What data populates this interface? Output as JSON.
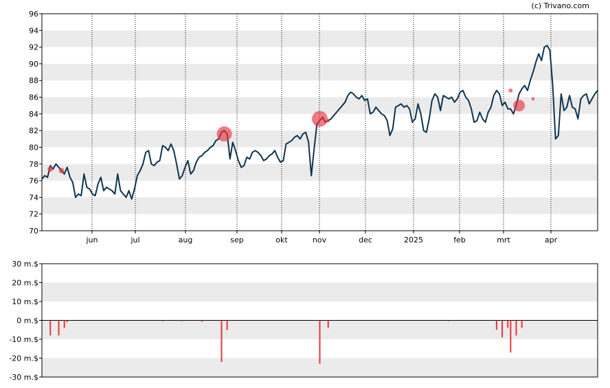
{
  "credit": "(c) Trivano.com",
  "chart_data": [
    {
      "type": "line",
      "title": "",
      "xlabel": "",
      "ylabel": "",
      "ylim": [
        70,
        96
      ],
      "grid": true,
      "x_tick_labels": [
        "jun",
        "jul",
        "aug",
        "sep",
        "okt",
        "nov",
        "dec",
        "2025",
        "feb",
        "mrt",
        "apr"
      ],
      "y_tick_labels": [
        "70",
        "72",
        "74",
        "76",
        "78",
        "80",
        "82",
        "84",
        "86",
        "88",
        "90",
        "92",
        "94",
        "96"
      ],
      "colors": {
        "line": "#0d3350",
        "marker": "#e8343f",
        "band": "#ebebeb",
        "grid": "#000000"
      },
      "series": [
        {
          "values": [
            76.2,
            76.6,
            76.4,
            77.8,
            77.4,
            78.0,
            77.6,
            77.2,
            76.8,
            77.6,
            76.4,
            75.8,
            74.0,
            74.4,
            74.2,
            76.8,
            75.2,
            75.0,
            74.4,
            74.2,
            75.6,
            76.4,
            74.8,
            75.2,
            75.0,
            74.8,
            74.4,
            76.8,
            74.8,
            74.4,
            74.0,
            74.8,
            73.8,
            75.0,
            76.6,
            77.2,
            78.0,
            79.4,
            79.6,
            78.0,
            77.8,
            78.2,
            78.4,
            80.2,
            80.0,
            79.6,
            80.4,
            79.6,
            78.0,
            76.2,
            76.6,
            77.6,
            78.4,
            76.8,
            77.2,
            78.2,
            78.8,
            79.0,
            79.4,
            79.6,
            80.0,
            80.2,
            80.8,
            81.0,
            81.8,
            82.0,
            81.6,
            78.6,
            80.6,
            79.6,
            78.4,
            77.6,
            77.8,
            78.8,
            78.6,
            79.4,
            79.6,
            79.4,
            79.0,
            78.4,
            78.6,
            79.0,
            79.2,
            79.6,
            78.8,
            78.2,
            78.4,
            80.4,
            80.6,
            80.8,
            81.2,
            81.4,
            81.0,
            81.6,
            81.8,
            80.6,
            76.6,
            79.8,
            82.8,
            83.2,
            83.6,
            83.0,
            83.2,
            83.4,
            83.8,
            84.2,
            84.6,
            85.0,
            85.4,
            86.2,
            86.6,
            86.4,
            86.0,
            85.8,
            86.2,
            85.6,
            85.8,
            84.0,
            84.2,
            84.8,
            84.4,
            84.0,
            83.8,
            83.2,
            81.4,
            82.2,
            84.8,
            85.0,
            85.2,
            84.8,
            85.0,
            84.6,
            83.0,
            83.4,
            85.2,
            84.0,
            82.0,
            81.8,
            83.4,
            85.6,
            86.4,
            86.0,
            84.4,
            86.2,
            86.0,
            85.8,
            86.0,
            85.4,
            85.8,
            86.6,
            86.8,
            86.0,
            85.6,
            84.6,
            83.0,
            83.2,
            84.2,
            83.4,
            83.0,
            84.2,
            84.8,
            86.2,
            86.8,
            86.4,
            85.0,
            85.4,
            84.6,
            84.6,
            84.0,
            85.0,
            86.4,
            87.0,
            87.4,
            86.8,
            88.0,
            89.0,
            90.2,
            91.2,
            90.4,
            92.0,
            92.2,
            91.6,
            87.4,
            81.0,
            81.4,
            86.4,
            84.4,
            84.8,
            86.2,
            84.8,
            84.6,
            83.4,
            85.8,
            86.2,
            86.4,
            85.2,
            85.8,
            86.4,
            86.8
          ],
          "events": [
            {
              "index": 3,
              "value": 77.4,
              "magnitude": 8
            },
            {
              "index": 7,
              "value": 77.2,
              "magnitude": 8
            },
            {
              "index": 65,
              "value": 81.6,
              "magnitude": 22
            },
            {
              "index": 99,
              "value": 83.4,
              "magnitude": 23
            },
            {
              "index": 102,
              "value": 83.2,
              "magnitude": 4
            },
            {
              "index": 167,
              "value": 86.8,
              "magnitude": 6
            },
            {
              "index": 170,
              "value": 85.0,
              "magnitude": 17
            },
            {
              "index": 175,
              "value": 85.8,
              "magnitude": 4
            }
          ]
        }
      ]
    },
    {
      "type": "bar",
      "title": "",
      "xlabel": "",
      "ylabel": "",
      "ylim": [
        -30,
        30
      ],
      "y_ticks": [
        30,
        20,
        10,
        0,
        -10,
        -20,
        -30
      ],
      "y_tick_labels": [
        "30 m.$",
        "20 m.$",
        "10 m.$",
        "0 m.$",
        "-10 m.$",
        "-20 m.$",
        "-30 m.$"
      ],
      "colors": {
        "bar": "#e8343f",
        "band": "#ebebeb"
      },
      "series": [
        {
          "values": [
            {
              "index": 3,
              "value": -8
            },
            {
              "index": 6,
              "value": -8
            },
            {
              "index": 8,
              "value": -4
            },
            {
              "index": 9,
              "value": -1
            },
            {
              "index": 43,
              "value": -0.5
            },
            {
              "index": 50,
              "value": -0.5
            },
            {
              "index": 57,
              "value": -0.8
            },
            {
              "index": 64,
              "value": -22
            },
            {
              "index": 66,
              "value": -5
            },
            {
              "index": 99,
              "value": -23
            },
            {
              "index": 102,
              "value": -4
            },
            {
              "index": 145,
              "value": -0.5
            },
            {
              "index": 162,
              "value": -5
            },
            {
              "index": 164,
              "value": -9
            },
            {
              "index": 166,
              "value": -4
            },
            {
              "index": 167,
              "value": -17
            },
            {
              "index": 169,
              "value": -8
            },
            {
              "index": 171,
              "value": -4
            }
          ]
        }
      ]
    }
  ]
}
